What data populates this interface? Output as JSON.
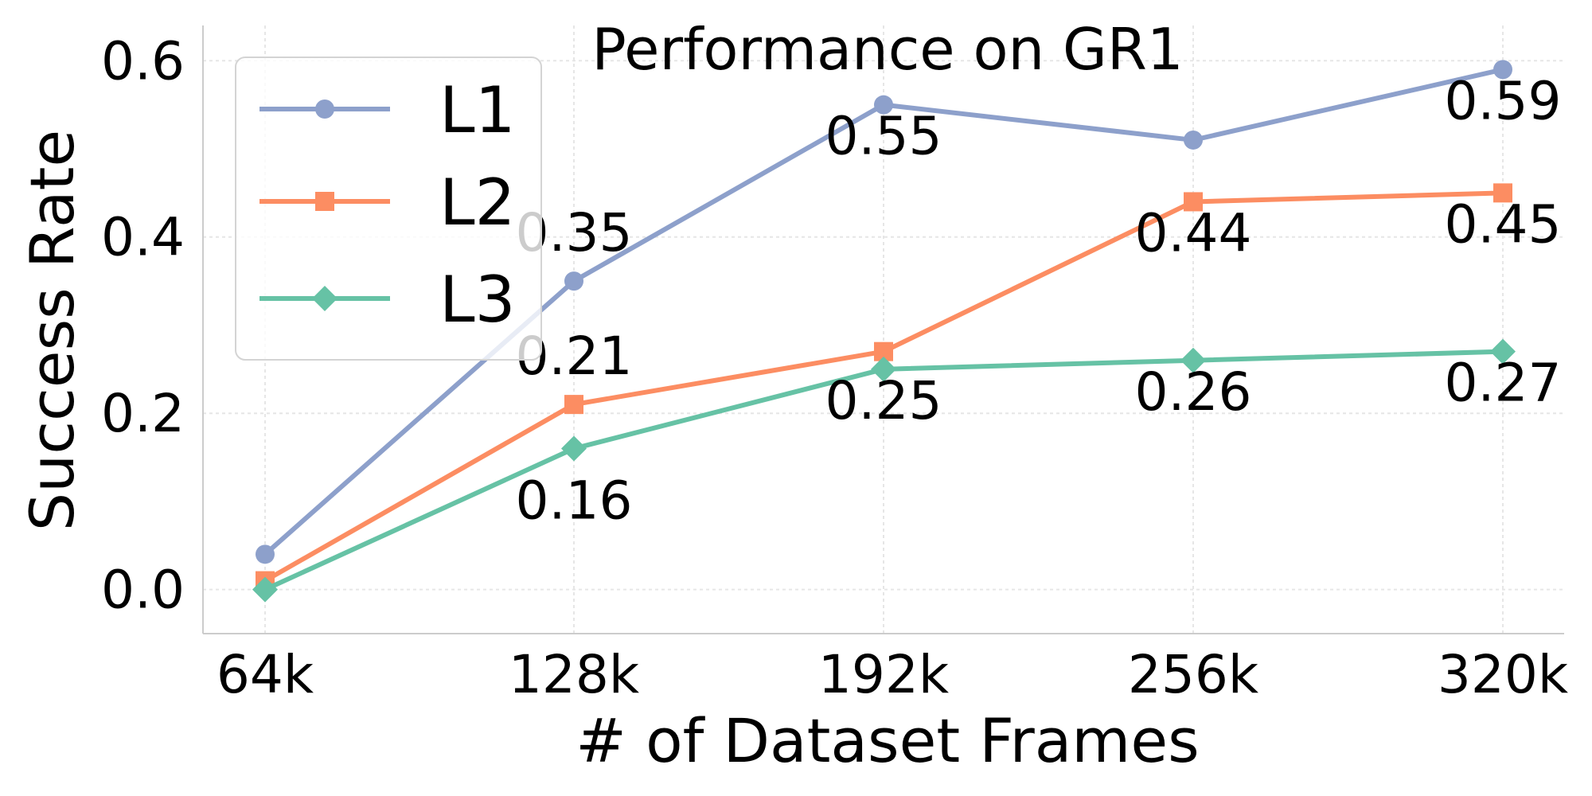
{
  "chart_data": {
    "type": "line",
    "title": "Performance on GR1",
    "xlabel": "# of Dataset Frames",
    "ylabel": "Success Rate",
    "categories": [
      "64k",
      "128k",
      "192k",
      "256k",
      "320k"
    ],
    "ylim": [
      -0.05,
      0.64
    ],
    "yticks": [
      0.0,
      0.2,
      0.4,
      0.6
    ],
    "ytick_labels": [
      "0.0",
      "0.2",
      "0.4",
      "0.6"
    ],
    "grid": true,
    "legend_position": "top-left",
    "series": [
      {
        "name": "L1",
        "values": [
          0.04,
          0.35,
          0.55,
          0.51,
          0.59
        ],
        "labels": [
          null,
          "0.35",
          "0.55",
          null,
          "0.59"
        ],
        "color": "#8DA0CB",
        "marker": "circle"
      },
      {
        "name": "L2",
        "values": [
          0.01,
          0.21,
          0.27,
          0.44,
          0.45
        ],
        "labels": [
          null,
          "0.21",
          null,
          "0.44",
          "0.45"
        ],
        "color": "#FC8D62",
        "marker": "square"
      },
      {
        "name": "L3",
        "values": [
          0.0,
          0.16,
          0.25,
          0.26,
          0.27
        ],
        "labels": [
          null,
          "0.16",
          "0.25",
          "0.26",
          "0.27"
        ],
        "color": "#66C2A5",
        "marker": "diamond"
      }
    ]
  }
}
